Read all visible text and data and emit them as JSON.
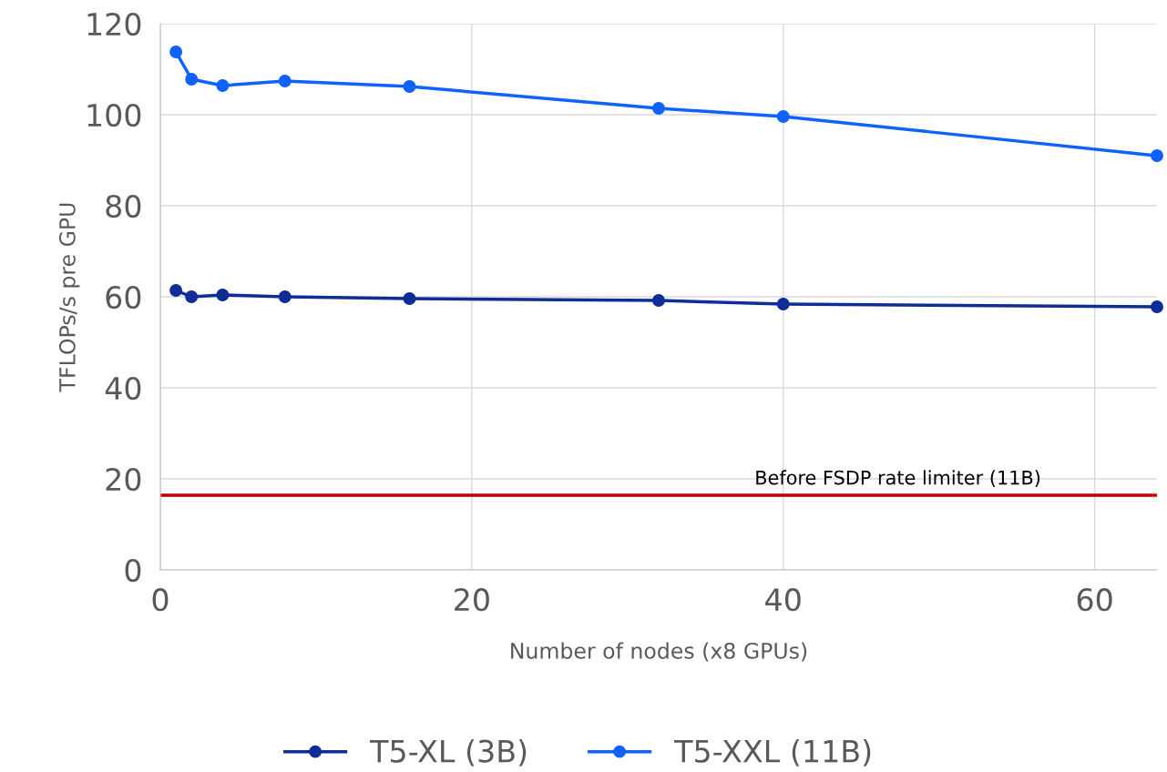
{
  "chart_data": {
    "type": "line",
    "xlabel": "Number of nodes (x8 GPUs)",
    "ylabel": "TFLOPs/s pre GPU",
    "x": [
      1,
      2,
      4,
      8,
      16,
      32,
      40,
      64
    ],
    "series": [
      {
        "name": "T5-XL (3B)",
        "color": "#0f2d96",
        "values": [
          61.4,
          60,
          60.4,
          60,
          59.6,
          59.2,
          58.4,
          57.8
        ]
      },
      {
        "name": "T5-XXL (11B)",
        "color": "#0f62fe",
        "values": [
          113.8,
          107.8,
          106.4,
          107.4,
          106.2,
          101.4,
          99.6,
          91
        ]
      }
    ],
    "xlim": [
      0,
      64
    ],
    "xticks": [
      0,
      20,
      40,
      60
    ],
    "ylim": [
      0,
      120
    ],
    "yticks": [
      0,
      20,
      40,
      60,
      80,
      100,
      120
    ],
    "ref_lines": [
      {
        "axis": "y",
        "value": 16.4,
        "label": "Before FSDP rate limiter (11B)",
        "color": "#c00000"
      }
    ],
    "grid": true,
    "legend": "bottom",
    "marker": "circle",
    "line_style": "solid"
  }
}
